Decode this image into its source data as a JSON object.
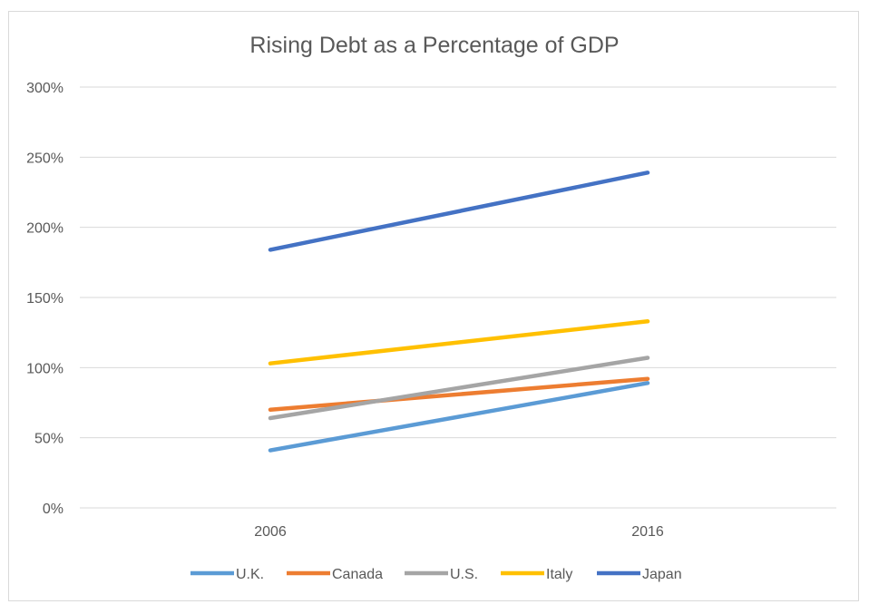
{
  "chart_data": {
    "type": "line",
    "title": "Rising Debt as a Percentage of GDP",
    "categories": [
      "2006",
      "2016"
    ],
    "ylim": [
      0,
      300
    ],
    "yticks": [
      {
        "value": 0,
        "label": "0%"
      },
      {
        "value": 50,
        "label": "50%"
      },
      {
        "value": 100,
        "label": "100%"
      },
      {
        "value": 150,
        "label": "150%"
      },
      {
        "value": 200,
        "label": "200%"
      },
      {
        "value": 250,
        "label": "250%"
      },
      {
        "value": 300,
        "label": "300%"
      }
    ],
    "grid": true,
    "legend_position": "bottom",
    "series": [
      {
        "name": "U.K.",
        "color": "#5b9bd5",
        "values": [
          41,
          89
        ]
      },
      {
        "name": "Canada",
        "color": "#ed7d31",
        "values": [
          70,
          92
        ]
      },
      {
        "name": "U.S.",
        "color": "#a5a5a5",
        "values": [
          64,
          107
        ]
      },
      {
        "name": "Italy",
        "color": "#ffc000",
        "values": [
          103,
          133
        ]
      },
      {
        "name": "Japan",
        "color": "#4472c4",
        "values": [
          184,
          239
        ]
      }
    ]
  }
}
